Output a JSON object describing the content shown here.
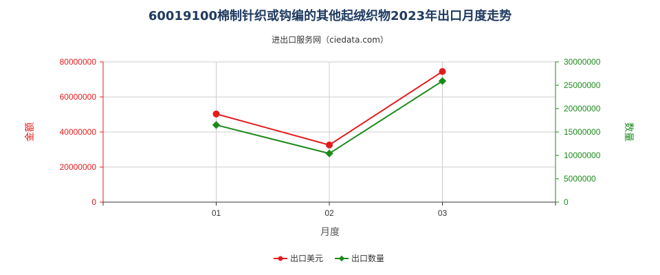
{
  "chart_data": {
    "type": "line",
    "title": "60019100棉制针织或钩编的其他起绒织物2023年出口月度走势",
    "subtitle": "进出口服务网（ciedata.com）",
    "xlabel": "月度",
    "ylabel_left": "金额",
    "ylabel_right": "数量",
    "categories": [
      "01",
      "02",
      "03"
    ],
    "y_left": {
      "min": 0,
      "max": 80000000,
      "ticks": [
        "0",
        "20000000",
        "40000000",
        "60000000",
        "80000000"
      ]
    },
    "y_right": {
      "min": 0,
      "max": 30000000,
      "ticks": [
        "0",
        "5000000",
        "10000000",
        "15000000",
        "20000000",
        "25000000",
        "30000000"
      ]
    },
    "series": [
      {
        "name": "出口美元",
        "axis": "left",
        "color": "#e41a1c",
        "values": [
          50300000,
          32600000,
          74500000
        ]
      },
      {
        "name": "出口数量",
        "axis": "right",
        "color": "#1a8a1a",
        "values": [
          16500000,
          10400000,
          25900000
        ]
      }
    ],
    "grid": true,
    "legend_position": "bottom"
  },
  "colors": {
    "left_axis": "#e41a1c",
    "right_axis": "#1a8a1a",
    "grid": "#cccccc"
  }
}
